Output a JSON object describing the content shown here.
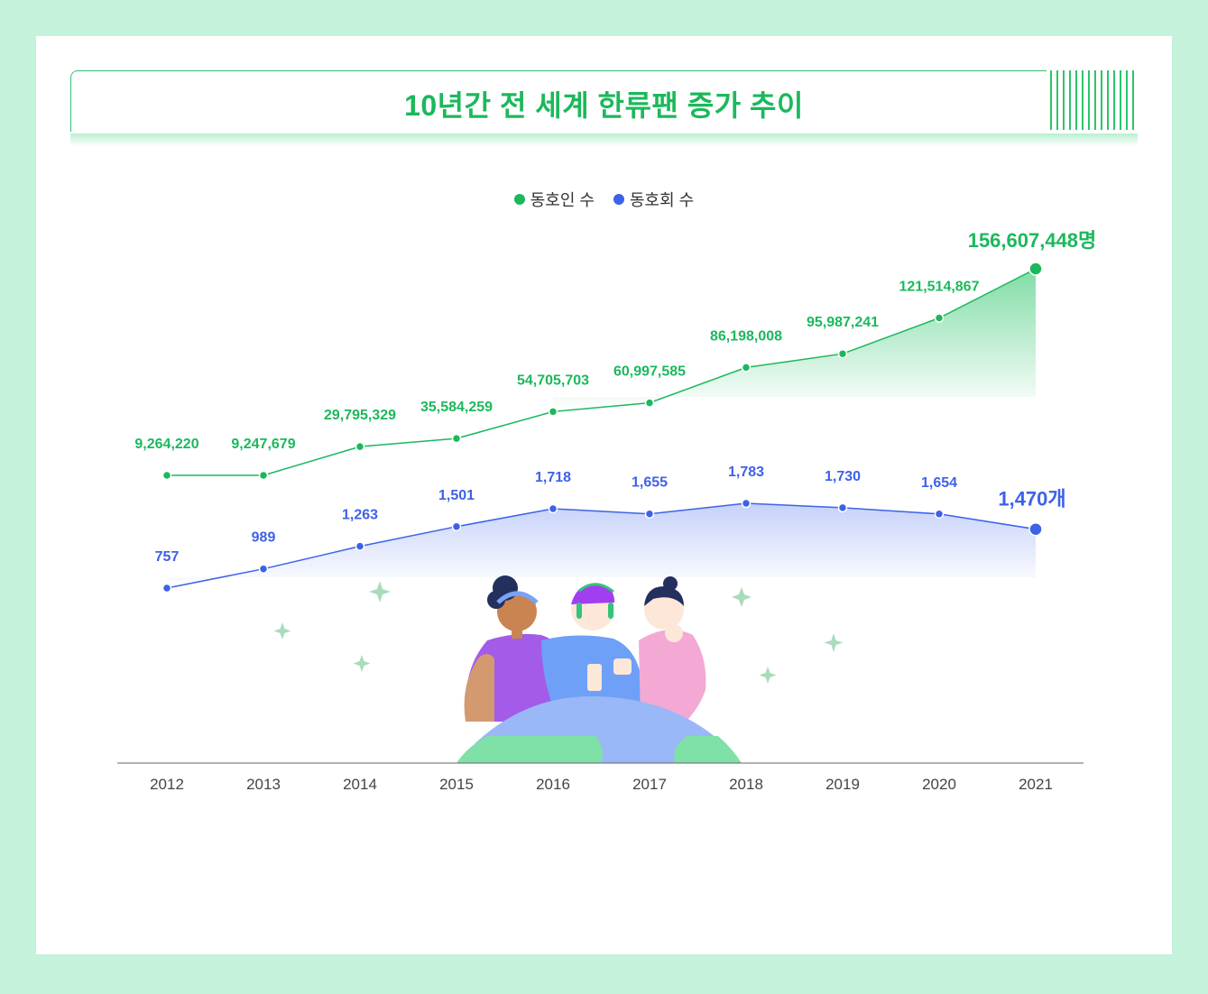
{
  "title": "10년간 전 세계 한류팬 증가 추이",
  "colors": {
    "green": "#1cb85c",
    "blue": "#3d62e8",
    "background": "#c4f2da"
  },
  "chart_data": {
    "type": "line",
    "title": "10년간 전 세계 한류팬 증가 추이",
    "categories": [
      "2012",
      "2013",
      "2014",
      "2015",
      "2016",
      "2017",
      "2018",
      "2019",
      "2020",
      "2021"
    ],
    "series": [
      {
        "name": "동호인 수",
        "values": [
          9264220,
          9247679,
          29795329,
          35584259,
          54705703,
          60997585,
          86198008,
          95987241,
          121514867,
          156607448
        ],
        "labels": [
          "9,264,220",
          "9,247,679",
          "29,795,329",
          "35,584,259",
          "54,705,703",
          "60,997,585",
          "86,198,008",
          "95,987,241",
          "121,514,867",
          "156,607,448명"
        ]
      },
      {
        "name": "동호회 수",
        "values": [
          757,
          989,
          1263,
          1501,
          1718,
          1655,
          1783,
          1730,
          1654,
          1470
        ],
        "labels": [
          "757",
          "989",
          "1,263",
          "1,501",
          "1,718",
          "1,655",
          "1,783",
          "1,730",
          "1,654",
          "1,470개"
        ]
      }
    ],
    "legend_position": "top-center",
    "grid": false
  }
}
